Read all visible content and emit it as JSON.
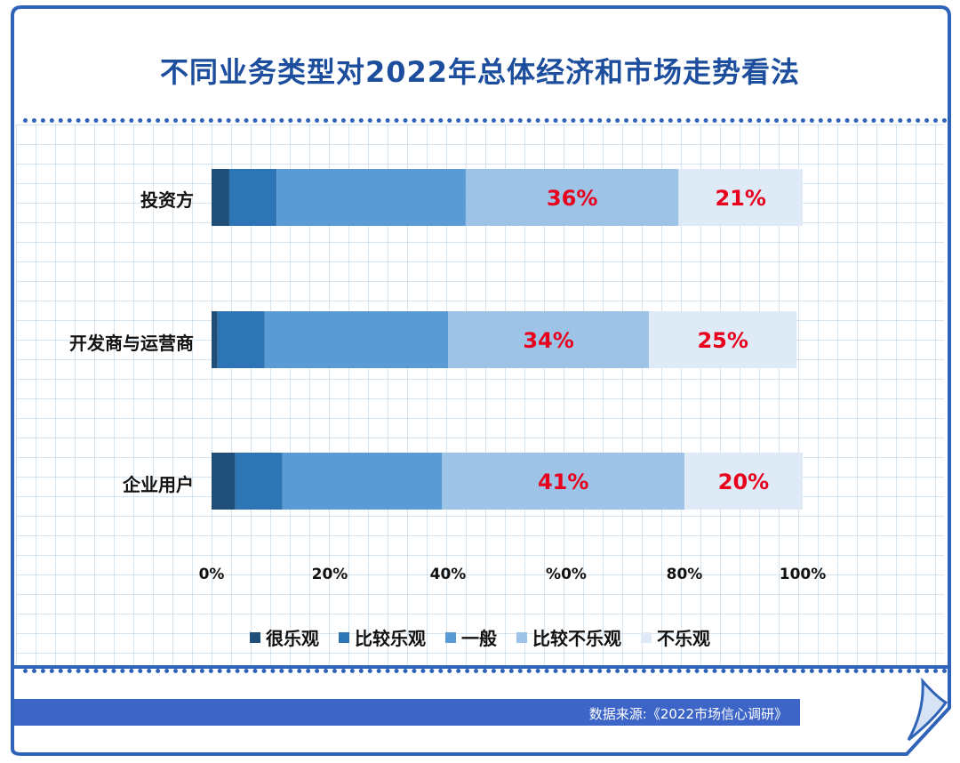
{
  "title": "不同业务类型对2022年总体经济和市场走势看法",
  "source": "数据来源:《2022市场信心调研》",
  "chart_data": {
    "type": "bar",
    "orientation": "horizontal",
    "stacked": true,
    "categories": [
      "投资方",
      "开发商与运营商",
      "企业用户"
    ],
    "series": [
      {
        "name": "很乐观",
        "color": "#1f4f78",
        "values": [
          3,
          1,
          4
        ]
      },
      {
        "name": "比较乐观",
        "color": "#2e75b6",
        "values": [
          8,
          8,
          8
        ]
      },
      {
        "name": "一般",
        "color": "#5b9bd5",
        "values": [
          32,
          31,
          27
        ]
      },
      {
        "name": "比较不乐观",
        "color": "#9dc3e6",
        "values": [
          36,
          34,
          41
        ]
      },
      {
        "name": "不乐观",
        "color": "#deebf7",
        "values": [
          21,
          25,
          20
        ]
      }
    ],
    "data_labels": [
      [
        "",
        "",
        "",
        "36%",
        "21%"
      ],
      [
        "",
        "",
        "",
        "34%",
        "25%"
      ],
      [
        "",
        "",
        "",
        "41%",
        "20%"
      ]
    ],
    "xlim": [
      0,
      100
    ],
    "ticks": [
      "0%",
      "20%",
      "40%",
      "%0%",
      "80%",
      "100%"
    ],
    "label_color": "#e8001c",
    "legend_position": "bottom",
    "grid": true
  }
}
